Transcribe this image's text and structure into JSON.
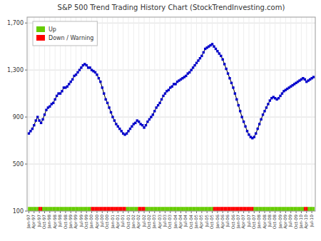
{
  "chart_data": {
    "type": "line",
    "title": "S&P 500 Trend Trading History Chart (StockTrendInvesting.com)",
    "categories": [
      "Jan-97",
      null,
      null,
      "Apr-97",
      null,
      null,
      "Jul-97",
      null,
      null,
      "Oct-97",
      null,
      null,
      "Jan-98",
      null,
      null,
      "Apr-98",
      null,
      null,
      "Jul-98",
      null,
      null,
      "Oct-98",
      null,
      null,
      "Jan-99",
      null,
      null,
      "Apr-99",
      null,
      null,
      "Jul-99",
      null,
      null,
      "Oct-99",
      null,
      null,
      "Jan-00",
      null,
      null,
      "Apr-00",
      null,
      null,
      "Jul-00",
      null,
      null,
      "Oct-00",
      null,
      null,
      "Jan-01",
      null,
      null,
      "Apr-01",
      null,
      null,
      "Jul-01",
      null,
      null,
      "Oct-01",
      null,
      null,
      "Jan-02",
      null,
      null,
      "Apr-02",
      null,
      null,
      "Jul-02",
      null,
      null,
      "Oct-02",
      null,
      null,
      "Jan-03",
      null,
      null,
      "Apr-03",
      null,
      null,
      "Jul-03",
      null,
      null,
      "Oct-03",
      null,
      null,
      "Jan-04",
      null,
      null,
      "Apr-04",
      null,
      null,
      "Jul-04",
      null,
      null,
      "Oct-04",
      null,
      null,
      "Jan-05",
      null,
      null,
      "Apr-05",
      null,
      null,
      "Jul-05",
      null,
      null,
      "Oct-05",
      null,
      null,
      "Jan-06",
      null,
      null,
      "Apr-06",
      null,
      null,
      "Jul-06",
      null,
      null,
      "Oct-06",
      null,
      null,
      "Jan-07",
      null,
      null,
      "Apr-07",
      null,
      null,
      "Jul-07",
      null,
      null,
      "Oct-07",
      null,
      null,
      "Jan-08",
      null,
      null,
      "Apr-08",
      null,
      null,
      "Jul-08",
      null,
      null,
      "Oct-08",
      null,
      null,
      "Jan-09",
      null,
      null,
      "Apr-09",
      null,
      null,
      "Jul-09",
      null,
      null,
      "Oct-09",
      null,
      null,
      "Jan-10",
      null,
      null,
      "Apr-10",
      null,
      null,
      "Jul-10",
      null
    ],
    "series": [
      {
        "type": "line",
        "color": "#000000",
        "values": [
          760,
          780,
          800,
          830,
          870,
          900,
          870,
          850,
          880,
          920,
          960,
          980,
          990,
          1010,
          1020,
          1050,
          1080,
          1100,
          1100,
          1120,
          1150,
          1150,
          1160,
          1180,
          1200,
          1220,
          1250,
          1260,
          1280,
          1300,
          1320,
          1340,
          1350,
          1340,
          1320,
          1320,
          1300,
          1290,
          1280,
          1260,
          1230,
          1200,
          1150,
          1100,
          1050,
          1020,
          980,
          940,
          900,
          870,
          840,
          820,
          800,
          780,
          760,
          750,
          760,
          780,
          800,
          820,
          840,
          850,
          870,
          860,
          840,
          830,
          810,
          830,
          860,
          880,
          900,
          920,
          950,
          980,
          1000,
          1020,
          1050,
          1080,
          1100,
          1120,
          1130,
          1150,
          1160,
          1180,
          1180,
          1200,
          1210,
          1220,
          1230,
          1240,
          1250,
          1270,
          1280,
          1300,
          1320,
          1340,
          1360,
          1380,
          1400,
          1420,
          1450,
          1480,
          1490,
          1500,
          1510,
          1520,
          1500,
          1480,
          1460,
          1440,
          1420,
          1390,
          1350,
          1310,
          1270,
          1230,
          1190,
          1150,
          1100,
          1050,
          1000,
          950,
          900,
          860,
          820,
          780,
          750,
          730,
          720,
          730,
          760,
          800,
          840,
          880,
          920,
          950,
          980,
          1010,
          1040,
          1060,
          1070,
          1060,
          1050,
          1060,
          1080,
          1100,
          1120,
          1130,
          1140,
          1150,
          1160,
          1170,
          1180,
          1190,
          1200,
          1210,
          1220,
          1230,
          1220,
          1200,
          1210,
          1220,
          1230,
          1240
        ]
      },
      {
        "type": "scatter",
        "marker": "square",
        "color": "#0000cc",
        "values": [
          760,
          780,
          800,
          830,
          870,
          900,
          870,
          850,
          880,
          920,
          960,
          980,
          990,
          1010,
          1020,
          1050,
          1080,
          1100,
          1100,
          1120,
          1150,
          1150,
          1160,
          1180,
          1200,
          1220,
          1250,
          1260,
          1280,
          1300,
          1320,
          1340,
          1350,
          1340,
          1320,
          1320,
          1300,
          1290,
          1280,
          1260,
          1230,
          1200,
          1150,
          1100,
          1050,
          1020,
          980,
          940,
          900,
          870,
          840,
          820,
          800,
          780,
          760,
          750,
          760,
          780,
          800,
          820,
          840,
          850,
          870,
          860,
          840,
          830,
          810,
          830,
          860,
          880,
          900,
          920,
          950,
          980,
          1000,
          1020,
          1050,
          1080,
          1100,
          1120,
          1130,
          1150,
          1160,
          1180,
          1180,
          1200,
          1210,
          1220,
          1230,
          1240,
          1250,
          1270,
          1280,
          1300,
          1320,
          1340,
          1360,
          1380,
          1400,
          1420,
          1450,
          1480,
          1490,
          1500,
          1510,
          1520,
          1500,
          1480,
          1460,
          1440,
          1420,
          1390,
          1350,
          1310,
          1270,
          1230,
          1190,
          1150,
          1100,
          1050,
          1000,
          950,
          900,
          860,
          820,
          780,
          750,
          730,
          720,
          730,
          760,
          800,
          840,
          880,
          920,
          950,
          980,
          1010,
          1040,
          1060,
          1070,
          1060,
          1050,
          1060,
          1080,
          1100,
          1120,
          1130,
          1140,
          1150,
          1160,
          1170,
          1180,
          1190,
          1200,
          1210,
          1220,
          1230,
          1220,
          1200,
          1210,
          1220,
          1230,
          1240
        ]
      },
      {
        "type": "bar",
        "name": "Up",
        "color": "#66cc00",
        "values": [
          135,
          135,
          135,
          135,
          135,
          135,
          null,
          null,
          135,
          135,
          135,
          135,
          135,
          135,
          135,
          135,
          135,
          135,
          135,
          135,
          135,
          135,
          135,
          135,
          135,
          135,
          135,
          135,
          135,
          135,
          135,
          135,
          135,
          135,
          135,
          135,
          null,
          null,
          null,
          null,
          null,
          null,
          null,
          null,
          null,
          null,
          null,
          null,
          null,
          null,
          null,
          null,
          null,
          null,
          null,
          null,
          135,
          135,
          135,
          135,
          135,
          135,
          135,
          null,
          null,
          null,
          null,
          135,
          135,
          135,
          135,
          135,
          135,
          135,
          135,
          135,
          135,
          135,
          135,
          135,
          135,
          135,
          135,
          135,
          135,
          135,
          135,
          135,
          135,
          135,
          135,
          135,
          135,
          135,
          135,
          135,
          135,
          135,
          135,
          135,
          135,
          135,
          135,
          135,
          135,
          135,
          null,
          null,
          null,
          null,
          null,
          null,
          null,
          null,
          null,
          null,
          null,
          null,
          null,
          null,
          null,
          null,
          null,
          null,
          null,
          null,
          null,
          null,
          null,
          135,
          135,
          135,
          135,
          135,
          135,
          135,
          135,
          135,
          135,
          135,
          135,
          135,
          135,
          135,
          135,
          135,
          135,
          135,
          135,
          135,
          135,
          135,
          135,
          135,
          135,
          135,
          135,
          135,
          null,
          null,
          135,
          135,
          135,
          135
        ]
      },
      {
        "type": "bar",
        "name": "Down / Warning",
        "color": "#ff0000",
        "values": [
          null,
          null,
          null,
          null,
          null,
          null,
          135,
          135,
          null,
          null,
          null,
          null,
          null,
          null,
          null,
          null,
          null,
          null,
          null,
          null,
          null,
          null,
          null,
          null,
          null,
          null,
          null,
          null,
          null,
          null,
          null,
          null,
          null,
          null,
          null,
          null,
          135,
          135,
          135,
          135,
          135,
          135,
          135,
          135,
          135,
          135,
          135,
          135,
          135,
          135,
          135,
          135,
          135,
          135,
          135,
          135,
          null,
          null,
          null,
          null,
          null,
          null,
          null,
          135,
          135,
          135,
          135,
          null,
          null,
          null,
          null,
          null,
          null,
          null,
          null,
          null,
          null,
          null,
          null,
          null,
          null,
          null,
          null,
          null,
          null,
          null,
          null,
          null,
          null,
          null,
          null,
          null,
          null,
          null,
          null,
          null,
          null,
          null,
          null,
          null,
          null,
          null,
          null,
          null,
          null,
          null,
          135,
          135,
          135,
          135,
          135,
          135,
          135,
          135,
          135,
          135,
          135,
          135,
          135,
          135,
          135,
          135,
          135,
          135,
          135,
          135,
          135,
          135,
          135,
          null,
          null,
          null,
          null,
          null,
          null,
          null,
          null,
          null,
          null,
          null,
          null,
          null,
          null,
          null,
          null,
          null,
          null,
          null,
          null,
          null,
          null,
          null,
          null,
          null,
          null,
          null,
          null,
          null,
          135,
          135,
          null,
          null,
          null,
          null
        ]
      }
    ],
    "ylim": [
      100,
      1750
    ],
    "yticks": [
      100,
      500,
      900,
      {
        "value": 1300,
        "label": "1,300"
      },
      {
        "value": 1700,
        "label": "1,700"
      }
    ],
    "grid": true,
    "legend": "upper left"
  }
}
